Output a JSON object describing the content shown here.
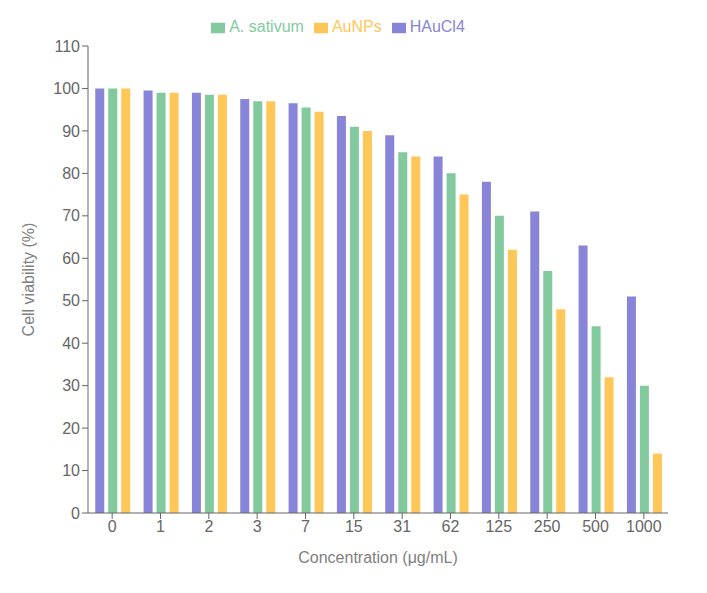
{
  "chart_data": {
    "type": "bar",
    "xlabel": "Concentration (μg/mL)",
    "ylabel": "Cell viability (%)",
    "categories": [
      "0",
      "1",
      "2",
      "3",
      "7",
      "15",
      "31",
      "62",
      "125",
      "250",
      "500",
      "1000"
    ],
    "series": [
      {
        "name": "HAuCl4",
        "color": "#8884d8",
        "values": [
          100,
          99.5,
          99,
          97.5,
          96.5,
          93.5,
          89,
          84,
          78,
          71,
          63,
          51
        ]
      },
      {
        "name": "A. sativum",
        "color": "#82ca9d",
        "values": [
          100,
          99,
          98.5,
          97,
          95.5,
          91,
          85,
          80,
          70,
          57,
          44,
          30
        ]
      },
      {
        "name": "AuNPs",
        "color": "#ffc658",
        "values": [
          100,
          99,
          98.5,
          97,
          94.5,
          90,
          84,
          75,
          62,
          48,
          32,
          14
        ]
      }
    ],
    "ylim": [
      0,
      110
    ],
    "yticks": [
      0,
      10,
      20,
      30,
      40,
      50,
      60,
      70,
      80,
      90,
      100,
      110
    ],
    "grid": false,
    "legend": "top"
  }
}
